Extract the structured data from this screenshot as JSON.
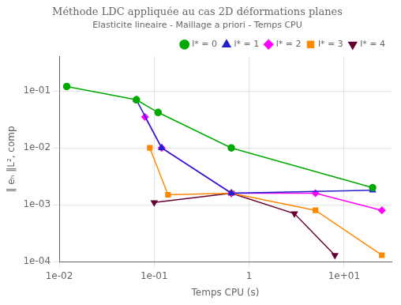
{
  "chart_data": {
    "type": "line",
    "title": "Méthode LDC appliquée au cas 2D déformations planes",
    "subtitle": "Elasticite lineaire - Maillage a priori - Temps CPU",
    "xlabel": "Temps CPU (s)",
    "ylabel": "‖ eₕ ‖L², comp",
    "log": true,
    "grid": true,
    "legend": "upper right",
    "xlim": [
      0.01,
      31.622776601683793
    ],
    "xticks": [
      {
        "value": 0.01,
        "label": "1e-02"
      },
      {
        "value": 0.1,
        "label": "1e-01"
      },
      1,
      {
        "value": 10,
        "label": "1e+01"
      }
    ],
    "ylim": [
      0.0001,
      0.4
    ],
    "yticks": [
      {
        "value": 0.0001,
        "label": "1e-04"
      },
      {
        "value": 0.001,
        "label": "1e-03"
      },
      {
        "value": 0.01,
        "label": "1e-02"
      },
      {
        "value": 0.1,
        "label": "1e-01"
      }
    ],
    "series": [
      {
        "name": "l* = 0",
        "color": "#00aa00",
        "marker": "circle",
        "x": [
          0.012,
          0.065,
          0.11,
          0.65,
          20.0
        ],
        "values": [
          0.12,
          0.07,
          0.042,
          0.01,
          0.002
        ]
      },
      {
        "name": "l* = 1",
        "color": "#2222cc",
        "marker": "triangle_up",
        "x": [
          0.065,
          0.12,
          0.65,
          20.0
        ],
        "values": [
          0.07,
          0.01,
          0.0016,
          0.0018
        ]
      },
      {
        "name": "l* = 2",
        "color": "#ff00ff",
        "marker": "diamond",
        "x": [
          0.08,
          0.12,
          0.65,
          5.0,
          25.0
        ],
        "values": [
          0.035,
          0.01,
          0.0016,
          0.0016,
          0.0008
        ]
      },
      {
        "name": "l* = 3",
        "color": "#ff8800",
        "marker": "square",
        "x": [
          0.09,
          0.14,
          0.65,
          5.0,
          25.0
        ],
        "values": [
          0.01,
          0.0015,
          0.0016,
          0.0008,
          0.00013
        ]
      },
      {
        "name": "l* = 4",
        "color": "#660033",
        "marker": "triangle_down",
        "x": [
          0.1,
          0.65,
          3.0,
          8.0
        ],
        "values": [
          0.0011,
          0.0016,
          0.0007,
          0.00013
        ]
      }
    ]
  }
}
